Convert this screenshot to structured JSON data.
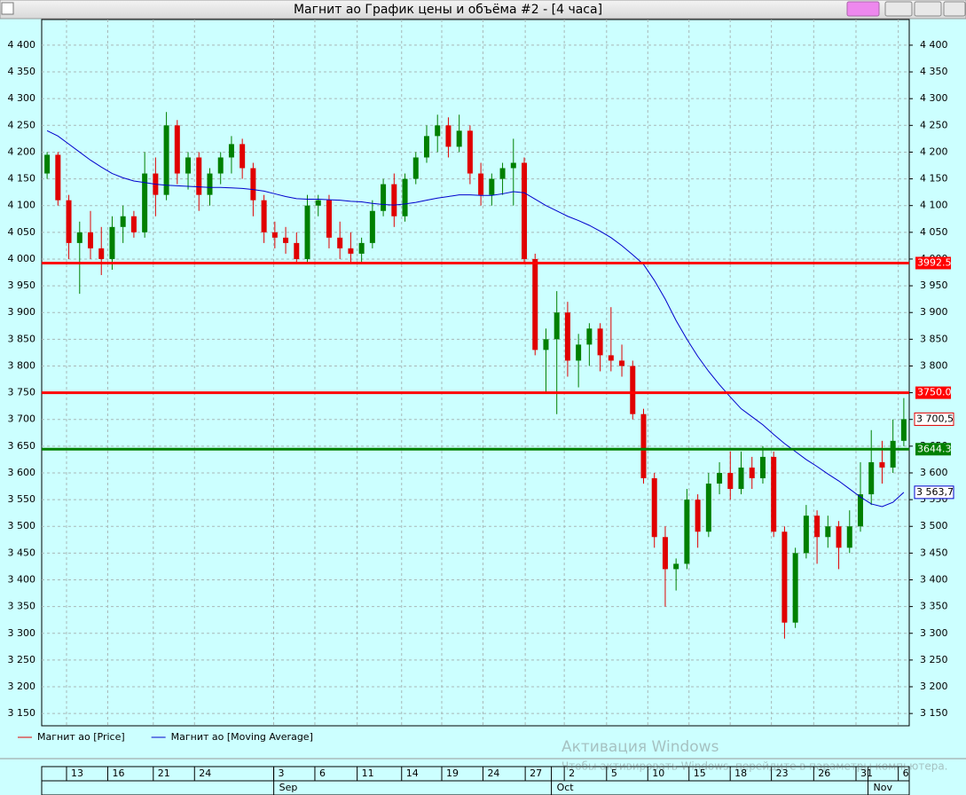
{
  "window_title": "Магнит ао График цены и объёма #2 - [4 часа]",
  "chart_data": {
    "type": "candlestick",
    "up_color": "#008000",
    "down_color": "#e00000",
    "candles": [
      [
        4160,
        4200,
        4150,
        4195
      ],
      [
        4195,
        4200,
        4100,
        4110
      ],
      [
        4110,
        4120,
        4000,
        4030
      ],
      [
        4030,
        4070,
        3935,
        4050
      ],
      [
        4050,
        4090,
        4000,
        4020
      ],
      [
        4020,
        4060,
        3970,
        4000
      ],
      [
        4000,
        4080,
        3980,
        4060
      ],
      [
        4060,
        4100,
        4030,
        4080
      ],
      [
        4080,
        4090,
        4040,
        4050
      ],
      [
        4050,
        4200,
        4040,
        4160
      ],
      [
        4160,
        4190,
        4080,
        4120
      ],
      [
        4120,
        4275,
        4110,
        4250
      ],
      [
        4250,
        4260,
        4140,
        4160
      ],
      [
        4160,
        4200,
        4130,
        4190
      ],
      [
        4190,
        4200,
        4090,
        4120
      ],
      [
        4120,
        4170,
        4100,
        4160
      ],
      [
        4160,
        4200,
        4140,
        4190
      ],
      [
        4190,
        4230,
        4160,
        4215
      ],
      [
        4215,
        4225,
        4150,
        4170
      ],
      [
        4170,
        4180,
        4080,
        4110
      ],
      [
        4110,
        4120,
        4030,
        4050
      ],
      [
        4050,
        4070,
        4020,
        4040
      ],
      [
        4040,
        4060,
        4010,
        4030
      ],
      [
        4030,
        4050,
        3990,
        4000
      ],
      [
        4000,
        4120,
        3995,
        4100
      ],
      [
        4100,
        4120,
        4080,
        4110
      ],
      [
        4110,
        4120,
        4020,
        4040
      ],
      [
        4040,
        4070,
        4000,
        4020
      ],
      [
        4020,
        4050,
        3990,
        4010
      ],
      [
        4010,
        4040,
        3990,
        4030
      ],
      [
        4030,
        4110,
        4020,
        4090
      ],
      [
        4090,
        4150,
        4080,
        4140
      ],
      [
        4140,
        4160,
        4060,
        4080
      ],
      [
        4080,
        4160,
        4070,
        4150
      ],
      [
        4150,
        4200,
        4140,
        4190
      ],
      [
        4190,
        4250,
        4180,
        4230
      ],
      [
        4230,
        4270,
        4200,
        4250
      ],
      [
        4250,
        4265,
        4190,
        4210
      ],
      [
        4210,
        4270,
        4200,
        4240
      ],
      [
        4240,
        4250,
        4140,
        4160
      ],
      [
        4160,
        4180,
        4100,
        4120
      ],
      [
        4120,
        4160,
        4100,
        4150
      ],
      [
        4150,
        4180,
        4120,
        4170
      ],
      [
        4170,
        4225,
        4100,
        4180
      ],
      [
        4180,
        4190,
        3990,
        4000
      ],
      [
        4000,
        4010,
        3820,
        3830
      ],
      [
        3830,
        3870,
        3750,
        3850
      ],
      [
        3850,
        3940,
        3710,
        3900
      ],
      [
        3900,
        3920,
        3780,
        3810
      ],
      [
        3810,
        3860,
        3760,
        3840
      ],
      [
        3840,
        3880,
        3800,
        3870
      ],
      [
        3870,
        3880,
        3790,
        3820
      ],
      [
        3820,
        3910,
        3790,
        3810
      ],
      [
        3810,
        3840,
        3780,
        3800
      ],
      [
        3800,
        3810,
        3700,
        3710
      ],
      [
        3710,
        3720,
        3580,
        3590
      ],
      [
        3590,
        3600,
        3460,
        3480
      ],
      [
        3480,
        3500,
        3350,
        3420
      ],
      [
        3420,
        3440,
        3380,
        3430
      ],
      [
        3430,
        3570,
        3420,
        3550
      ],
      [
        3550,
        3560,
        3460,
        3490
      ],
      [
        3490,
        3600,
        3480,
        3580
      ],
      [
        3580,
        3620,
        3560,
        3600
      ],
      [
        3600,
        3640,
        3550,
        3570
      ],
      [
        3570,
        3640,
        3560,
        3610
      ],
      [
        3610,
        3630,
        3570,
        3590
      ],
      [
        3590,
        3650,
        3580,
        3630
      ],
      [
        3630,
        3640,
        3480,
        3490
      ],
      [
        3490,
        3500,
        3290,
        3320
      ],
      [
        3320,
        3460,
        3310,
        3450
      ],
      [
        3450,
        3540,
        3440,
        3520
      ],
      [
        3520,
        3530,
        3430,
        3480
      ],
      [
        3480,
        3520,
        3460,
        3500
      ],
      [
        3500,
        3510,
        3420,
        3460
      ],
      [
        3460,
        3530,
        3450,
        3500
      ],
      [
        3500,
        3620,
        3490,
        3560
      ],
      [
        3560,
        3680,
        3540,
        3620
      ],
      [
        3620,
        3660,
        3580,
        3610
      ],
      [
        3610,
        3700,
        3600,
        3660
      ],
      [
        3660,
        3740,
        3650,
        3700.5
      ]
    ],
    "series": [
      {
        "name": "Магнит ао [Price]",
        "color": "#e00000"
      },
      {
        "name": "Магнит ао [Moving Average]",
        "color": "#0000cc",
        "values": [
          4240,
          4230,
          4215,
          4200,
          4185,
          4172,
          4160,
          4152,
          4146,
          4143,
          4140,
          4138,
          4137,
          4136,
          4135,
          4134,
          4134,
          4133,
          4132,
          4130,
          4127,
          4122,
          4117,
          4113,
          4112,
          4112,
          4111,
          4110,
          4108,
          4107,
          4104,
          4102,
          4101,
          4103,
          4106,
          4110,
          4114,
          4117,
          4120,
          4120,
          4119,
          4119,
          4122,
          4126,
          4124,
          4112,
          4100,
          4090,
          4080,
          4072,
          4063,
          4052,
          4040,
          4025,
          4008,
          3990,
          3960,
          3925,
          3885,
          3850,
          3818,
          3790,
          3765,
          3742,
          3720,
          3705,
          3690,
          3672,
          3655,
          3640,
          3625,
          3612,
          3598,
          3585,
          3570,
          3555,
          3542,
          3537,
          3545,
          3563.7
        ]
      }
    ],
    "last_price": {
      "value": 3700.5,
      "label": "3 700,5"
    },
    "last_ma": {
      "value": 3563.7,
      "label": "3 563,7"
    },
    "levels": [
      {
        "value": 3992.5,
        "label": "3992.5",
        "color": "#ff0000"
      },
      {
        "value": 3750.0,
        "label": "3750.0",
        "color": "#ff0000"
      },
      {
        "value": 3644.3,
        "label": "3644.3",
        "color": "#008000"
      }
    ],
    "xlim": [
      0,
      80
    ],
    "ylim": [
      3127,
      4448
    ],
    "yticks": [
      {
        "value": 3150,
        "label": "3 150"
      },
      {
        "value": 3200,
        "label": "3 200"
      },
      {
        "value": 3250,
        "label": "3 250"
      },
      {
        "value": 3300,
        "label": "3 300"
      },
      {
        "value": 3350,
        "label": "3 350"
      },
      {
        "value": 3400,
        "label": "3 400"
      },
      {
        "value": 3450,
        "label": "3 450"
      },
      {
        "value": 3500,
        "label": "3 500"
      },
      {
        "value": 3550,
        "label": "3 550"
      },
      {
        "value": 3600,
        "label": "3 600"
      },
      {
        "value": 3650,
        "label": "3 650"
      },
      {
        "value": 3700,
        "label": "3 700"
      },
      {
        "value": 3750,
        "label": "3 750"
      },
      {
        "value": 3800,
        "label": "3 800"
      },
      {
        "value": 3850,
        "label": "3 850"
      },
      {
        "value": 3900,
        "label": "3 900"
      },
      {
        "value": 3950,
        "label": "3 950"
      },
      {
        "value": 4000,
        "label": "4 000"
      },
      {
        "value": 4050,
        "label": "4 050"
      },
      {
        "value": 4100,
        "label": "4 100"
      },
      {
        "value": 4150,
        "label": "4 150"
      },
      {
        "value": 4200,
        "label": "4 200"
      },
      {
        "value": 4250,
        "label": "4 250"
      },
      {
        "value": 4300,
        "label": "4 300"
      },
      {
        "value": 4350,
        "label": "4 350"
      },
      {
        "value": 4400,
        "label": "4 400"
      }
    ],
    "xticks": [
      {
        "value": 2.7,
        "label": "13"
      },
      {
        "value": 6.5,
        "label": "16"
      },
      {
        "value": 10.7,
        "label": "21"
      },
      {
        "value": 14.5,
        "label": "24"
      },
      {
        "value": 21.8,
        "label": "3"
      },
      {
        "value": 25.6,
        "label": "6"
      },
      {
        "value": 29.5,
        "label": "11"
      },
      {
        "value": 33.6,
        "label": "14"
      },
      {
        "value": 37.3,
        "label": "19"
      },
      {
        "value": 41.1,
        "label": "24"
      },
      {
        "value": 45.0,
        "label": "27"
      },
      {
        "value": 48.6,
        "label": "2"
      },
      {
        "value": 52.5,
        "label": "5"
      },
      {
        "value": 56.3,
        "label": "10"
      },
      {
        "value": 60.1,
        "label": "15"
      },
      {
        "value": 63.9,
        "label": "18"
      },
      {
        "value": 67.7,
        "label": "23"
      },
      {
        "value": 71.6,
        "label": "26"
      },
      {
        "value": 75.5,
        "label": "31"
      },
      {
        "value": 79.4,
        "label": "6"
      }
    ],
    "month_ticks": [
      {
        "value": 21.4,
        "label": "Sep"
      },
      {
        "value": 47.0,
        "label": "Oct"
      },
      {
        "value": 76.2,
        "label": "Nov"
      }
    ],
    "grid": true
  },
  "watermark": {
    "title": "Активация Windows",
    "text": "Чтобы активировать Windows, перейдите в параметры компьютера."
  }
}
